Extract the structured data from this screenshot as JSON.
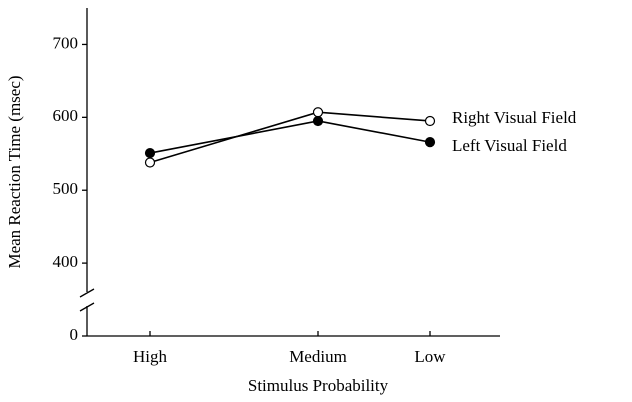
{
  "chart_data": {
    "type": "line",
    "x_label": "Stimulus Probability",
    "y_label": "Mean Reaction Time (msec)",
    "categories": [
      "High",
      "Medium",
      "Low"
    ],
    "series": [
      {
        "name": "Right Visual Field",
        "color": "#000000",
        "marker": "open-circle",
        "values": [
          538,
          607,
          595
        ]
      },
      {
        "name": "Left Visual Field",
        "color": "#000000",
        "marker": "filled-circle",
        "values": [
          551,
          595,
          566
        ]
      }
    ],
    "ylim": [
      300,
      750
    ],
    "yticks": [
      0,
      400,
      500,
      600,
      700
    ],
    "axis_break": true,
    "grid": false
  }
}
